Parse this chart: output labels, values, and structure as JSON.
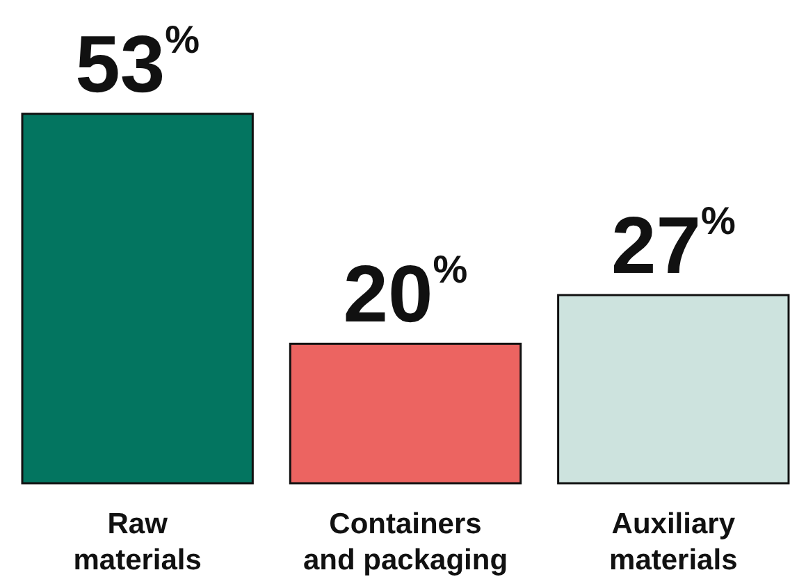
{
  "chart_data": {
    "type": "bar",
    "categories": [
      "Raw materials",
      "Containers and packaging",
      "Auxiliary materials"
    ],
    "values": [
      53,
      20,
      27
    ],
    "colors": [
      "#037560",
      "#ec6461",
      "#cde3de"
    ],
    "value_labels": [
      "53$^{%}$",
      "20$^{%}$",
      "27$^{%}$"
    ]
  }
}
